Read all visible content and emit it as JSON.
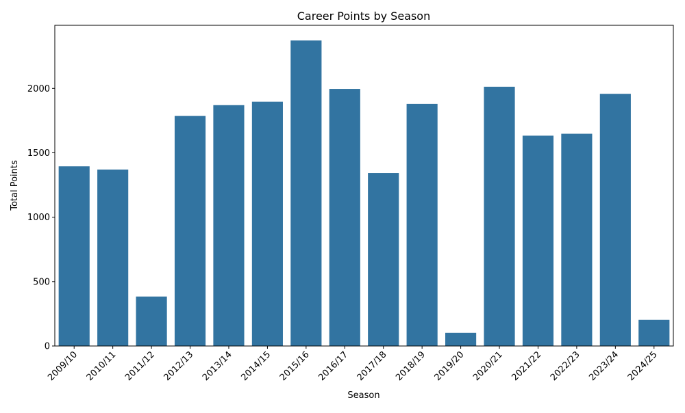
{
  "chart_data": {
    "type": "bar",
    "title": "Career Points by Season",
    "xlabel": "Season",
    "ylabel": "Total Points",
    "categories": [
      "2009/10",
      "2010/11",
      "2011/12",
      "2012/13",
      "2013/14",
      "2014/15",
      "2015/16",
      "2016/17",
      "2017/18",
      "2018/19",
      "2019/20",
      "2020/21",
      "2021/22",
      "2022/23",
      "2023/24",
      "2024/25"
    ],
    "values": [
      1395,
      1370,
      384,
      1786,
      1870,
      1897,
      2372,
      1996,
      1343,
      1880,
      102,
      2013,
      1633,
      1648,
      1958,
      203
    ],
    "ylim": [
      0,
      2490
    ],
    "yticks": [
      0,
      500,
      1000,
      1500,
      2000
    ],
    "grid": false,
    "bar_color": "#3274a1"
  }
}
